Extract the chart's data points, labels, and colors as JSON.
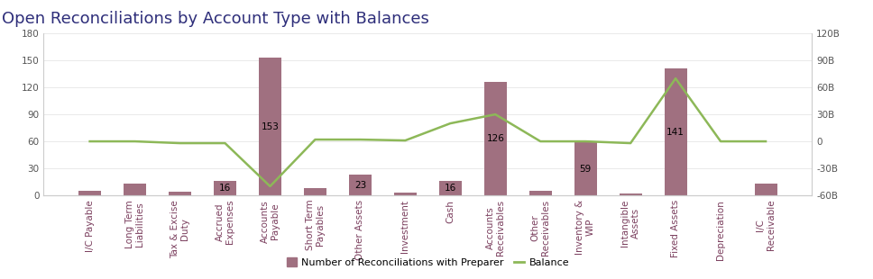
{
  "title": "Open Reconciliations by Account Type with Balances",
  "categories": [
    "I/C Payable",
    "Long Term\nLiabilities",
    "Tax & Excise\nDuty",
    "Accrued\nExpenses",
    "Accounts\nPayable",
    "Short Term\nPayables",
    "Other Assets",
    "Investment",
    "Cash",
    "Accounts\nReceivables",
    "Other\nReceivables",
    "Inventory &\nWIP",
    "Intangible\nAssets",
    "Fixed Assets",
    "Depreciation",
    "I/C\nReceivable"
  ],
  "bar_values": [
    5,
    13,
    4,
    16,
    153,
    8,
    23,
    3,
    16,
    126,
    5,
    59,
    2,
    141,
    0,
    13
  ],
  "bar_labels": [
    "",
    "",
    "",
    "16",
    "153",
    "",
    "23",
    "",
    "16",
    "126",
    "",
    "59",
    "",
    "141",
    "",
    ""
  ],
  "line_values": [
    0,
    0,
    -2,
    -2,
    -50,
    2,
    2,
    1,
    20,
    30,
    0,
    0,
    -2,
    70,
    0,
    0
  ],
  "bar_color": "#a07080",
  "line_color": "#8db858",
  "background_color": "#ffffff",
  "ylim_left": [
    0,
    180
  ],
  "yticks_left": [
    0,
    30,
    60,
    90,
    120,
    150,
    180
  ],
  "ylim_right": [
    -60,
    120
  ],
  "yticks_right_labels": [
    "-60B",
    "-30B",
    "0",
    "30B",
    "60B",
    "90B",
    "120B"
  ],
  "yticks_right_values": [
    -60,
    -30,
    0,
    30,
    60,
    90,
    120
  ],
  "legend_labels": [
    "Number of Reconciliations with Preparer",
    "Balance"
  ],
  "title_fontsize": 13,
  "tick_fontsize": 7.5,
  "label_fontsize": 7.5
}
